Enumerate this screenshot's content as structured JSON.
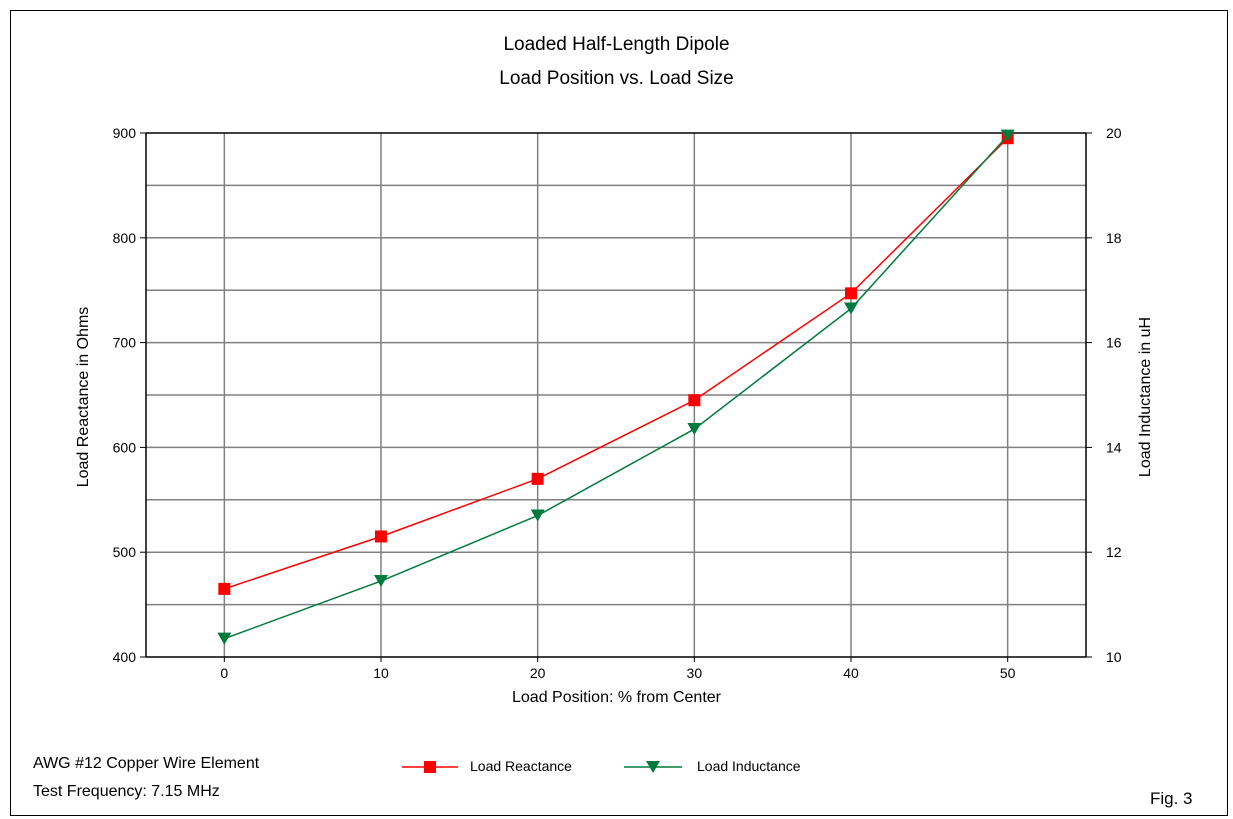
{
  "chart_data": {
    "type": "line",
    "title": "Loaded Half-Length Dipole",
    "subtitle": "Load Position vs. Load Size",
    "xlabel": "Load Position: % from Center",
    "ylabel_left": "Load Reactance in Ohms",
    "ylabel_right": "Load Inductance in uH",
    "x": [
      0,
      10,
      20,
      30,
      40,
      50
    ],
    "xlim": [
      -5,
      55
    ],
    "x_ticks": [
      "0",
      "10",
      "20",
      "30",
      "40",
      "50"
    ],
    "ylim_left": [
      400,
      900
    ],
    "y_ticks_left": [
      "400",
      "500",
      "600",
      "700",
      "800",
      "900"
    ],
    "ylim_right": [
      10,
      20
    ],
    "y_ticks_right": [
      "10",
      "12",
      "14",
      "16",
      "18",
      "20"
    ],
    "grid": true,
    "legend_position": "bottom-center",
    "series": [
      {
        "name": "Load Reactance",
        "axis": "left",
        "marker": "square",
        "color": "#ff0000",
        "values": [
          465,
          515,
          570,
          645,
          747,
          895
        ]
      },
      {
        "name": "Load Inductance",
        "axis": "right",
        "marker": "triangle-down",
        "color": "#007a3d",
        "values": [
          10.35,
          11.45,
          12.7,
          14.35,
          16.65,
          19.95
        ]
      }
    ]
  },
  "notes": {
    "line1": "AWG #12 Copper Wire Element",
    "line2": "Test Frequency: 7.15 MHz"
  },
  "figure_label": "Fig. 3"
}
